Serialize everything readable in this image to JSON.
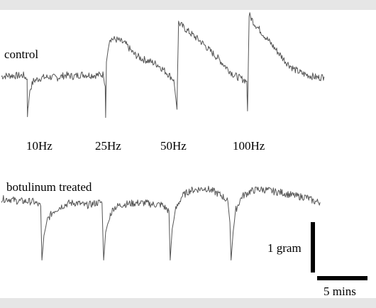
{
  "chart_data": {
    "type": "line",
    "series": [
      {
        "name": "control",
        "trace": [
          [
            0,
            0.16
          ],
          [
            2,
            0.19
          ],
          [
            4,
            0.18
          ],
          [
            5.5,
            0.19
          ],
          [
            6.4,
            0.08
          ],
          [
            6.5,
            -1.0
          ],
          [
            6.7,
            -0.75
          ],
          [
            7.1,
            -0.25
          ],
          [
            8,
            0.02
          ],
          [
            10,
            0.12
          ],
          [
            12,
            0.14
          ],
          [
            14,
            0.12
          ],
          [
            16,
            0.2
          ],
          [
            18,
            0.16
          ],
          [
            20,
            0.22
          ],
          [
            22,
            0.2
          ],
          [
            24,
            0.2
          ],
          [
            25.5,
            0.22
          ],
          [
            25.9,
            -0.15
          ],
          [
            26,
            -1.1
          ],
          [
            26.2,
            0.6
          ],
          [
            27,
            1.32
          ],
          [
            29,
            1.28
          ],
          [
            31,
            1.15
          ],
          [
            33,
            0.85
          ],
          [
            35,
            0.7
          ],
          [
            37,
            0.62
          ],
          [
            39,
            0.52
          ],
          [
            41,
            0.3
          ],
          [
            43,
            0.06
          ],
          [
            43.8,
            -0.85
          ],
          [
            44,
            0.6
          ],
          [
            44.2,
            1.8
          ],
          [
            46,
            1.6
          ],
          [
            48,
            1.4
          ],
          [
            50,
            1.2
          ],
          [
            52,
            0.95
          ],
          [
            54,
            0.72
          ],
          [
            56,
            0.45
          ],
          [
            58,
            0.2
          ],
          [
            60,
            0.08
          ],
          [
            61.2,
            0.02
          ],
          [
            61.4,
            -0.9
          ],
          [
            61.6,
            0.5
          ],
          [
            61.8,
            2.05
          ],
          [
            63,
            1.8
          ],
          [
            65,
            1.5
          ],
          [
            67,
            1.2
          ],
          [
            69,
            0.9
          ],
          [
            71,
            0.6
          ],
          [
            73,
            0.38
          ],
          [
            75,
            0.25
          ],
          [
            77,
            0.18
          ],
          [
            79,
            0.12
          ],
          [
            80.5,
            0.15
          ]
        ]
      },
      {
        "name": "botulinum treated",
        "trace": [
          [
            0,
            0.12
          ],
          [
            2,
            0.12
          ],
          [
            4,
            0.06
          ],
          [
            6,
            0.05
          ],
          [
            8,
            0.04
          ],
          [
            9.8,
            -0.1
          ],
          [
            10.1,
            -1.75
          ],
          [
            10.6,
            -1.0
          ],
          [
            11.5,
            -0.5
          ],
          [
            13,
            -0.25
          ],
          [
            15,
            -0.1
          ],
          [
            17,
            0.0
          ],
          [
            19,
            0.0
          ],
          [
            21,
            -0.08
          ],
          [
            23,
            -0.02
          ],
          [
            24.5,
            0.02
          ],
          [
            25.1,
            0.0
          ],
          [
            25.5,
            -1.75
          ],
          [
            26,
            -0.9
          ],
          [
            27,
            -0.4
          ],
          [
            28,
            -0.15
          ],
          [
            30,
            -0.05
          ],
          [
            32,
            -0.02
          ],
          [
            34,
            0.0
          ],
          [
            36,
            0.0
          ],
          [
            38,
            -0.05
          ],
          [
            40,
            -0.05
          ],
          [
            41.8,
            -0.25
          ],
          [
            42.1,
            -1.75
          ],
          [
            42.6,
            -0.8
          ],
          [
            43.5,
            -0.2
          ],
          [
            45,
            0.2
          ],
          [
            47,
            0.38
          ],
          [
            49,
            0.42
          ],
          [
            51,
            0.45
          ],
          [
            53,
            0.35
          ],
          [
            55,
            0.22
          ],
          [
            56.5,
            0.05
          ],
          [
            57,
            -0.6
          ],
          [
            57.3,
            -1.75
          ],
          [
            57.8,
            -0.9
          ],
          [
            58.5,
            -0.2
          ],
          [
            60,
            0.2
          ],
          [
            62,
            0.35
          ],
          [
            64,
            0.42
          ],
          [
            66,
            0.4
          ],
          [
            68,
            0.35
          ],
          [
            70,
            0.32
          ],
          [
            72,
            0.25
          ],
          [
            74,
            0.2
          ],
          [
            76,
            0.18
          ],
          [
            78,
            0.05
          ],
          [
            79.5,
            0.02
          ]
        ]
      }
    ],
    "stimulus_labels": [
      "10Hz",
      "25Hz",
      "50Hz",
      "100Hz"
    ],
    "xlim": [
      0,
      83
    ],
    "ylim": [
      -2,
      2.4
    ],
    "grid": false,
    "scale_bars": {
      "vertical": "1 gram",
      "horizontal": "5 mins"
    },
    "series_color": "#555555"
  }
}
